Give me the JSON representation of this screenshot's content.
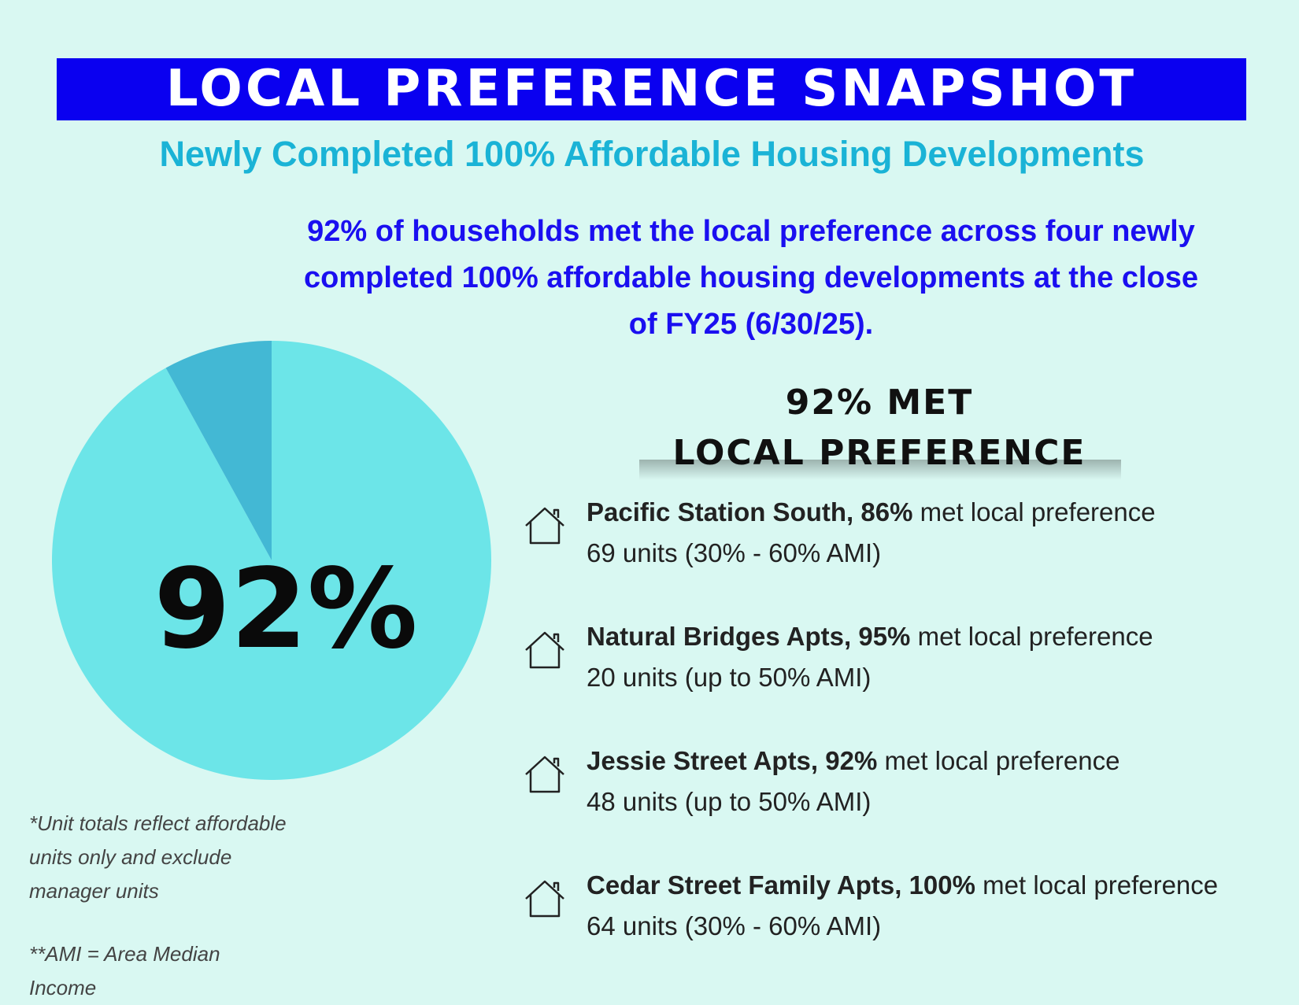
{
  "header": {
    "title": "LOCAL PREFERENCE SNAPSHOT",
    "subtitle": "Newly Completed 100% Affordable Housing Developments"
  },
  "summary": "92% of households met the local preference across four newly completed 100% affordable housing developments at the close of FY25 (6/30/25).",
  "chart_data": {
    "type": "pie",
    "values": [
      92,
      8
    ],
    "value_labels": [
      "92%",
      null
    ],
    "colors": [
      "#6ce5e8",
      "#43b8d4"
    ]
  },
  "heading": [
    "92% MET",
    "LOCAL PREFERENCE"
  ],
  "developments": [
    {
      "name": "Pacific Station South,",
      "rate": "86%",
      "text": "met local preference",
      "units": "69 units (30% - 60% AMI)"
    },
    {
      "name": "Natural Bridges Apts,",
      "rate": "95%",
      "text": "met local preference",
      "units": "20 units (up to 50% AMI)"
    },
    {
      "name": "Jessie Street Apts,",
      "rate": "92%",
      "text": "met local preference",
      "units": "48 units (up to 50% AMI)"
    },
    {
      "name": "Cedar Street Family Apts,",
      "rate": "100%",
      "text": "met local preference",
      "units": "64 units (30% - 60% AMI)"
    }
  ],
  "notes": [
    "*Unit totals reflect affordable units only and exclude manager units",
    "**AMI = Area Median Income"
  ]
}
